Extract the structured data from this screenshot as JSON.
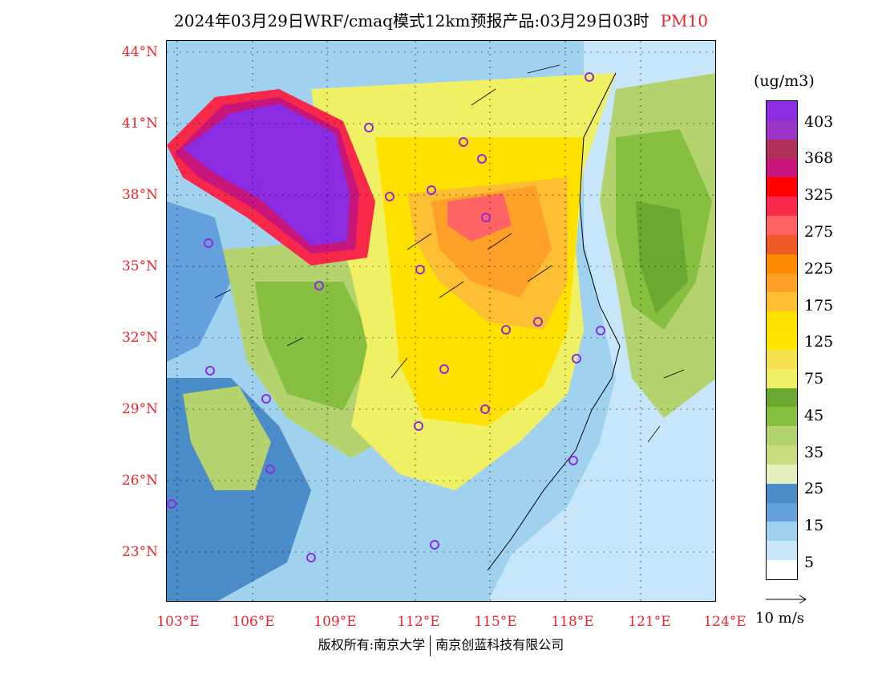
{
  "title": {
    "main": "2024年03月29日WRF/cmaq模式12km预报产品:03月29日03时",
    "species": "PM10"
  },
  "axes": {
    "lat_labels": [
      "44°N",
      "41°N",
      "38°N",
      "35°N",
      "32°N",
      "29°N",
      "26°N",
      "23°N"
    ],
    "lon_labels": [
      "103°E",
      "106°E",
      "109°E",
      "112°E",
      "115°E",
      "118°E",
      "121°E",
      "124°E"
    ]
  },
  "colorbar": {
    "units": "(ug/m3)",
    "labels": [
      "403",
      "368",
      "325",
      "275",
      "225",
      "175",
      "125",
      "75",
      "45",
      "35",
      "25",
      "15",
      "5"
    ],
    "colors": [
      "#8b2be2",
      "#9a35c8",
      "#b0305a",
      "#c8157a",
      "#ff0000",
      "#f7284a",
      "#ff6464",
      "#f05a28",
      "#ff8c00",
      "#ffa028",
      "#fcbe32",
      "#ffe100",
      "#ffe600",
      "#f5e150",
      "#f0f064",
      "#6aa832",
      "#87c040",
      "#b4d26e",
      "#c8dc82",
      "#e6f0be",
      "#4a8cc8",
      "#64a0dc",
      "#a0d2f0",
      "#c8e6fa",
      "#ffffff"
    ]
  },
  "vector_reference": {
    "label": "10 m/s"
  },
  "footer": {
    "left": "版权所有:南京大学",
    "right": "南京创蓝科技有限公司"
  }
}
